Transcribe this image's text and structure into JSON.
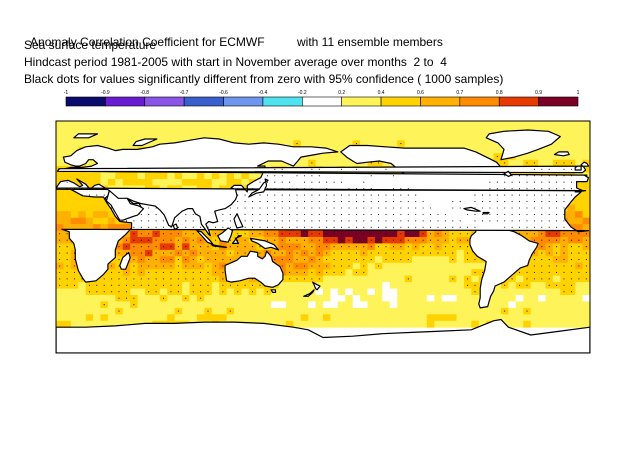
{
  "header": {
    "title_left": "Anomaly Correlation Coefficient for ECMWF",
    "title_right": "with 11 ensemble members",
    "variable": "Sea surface temperature",
    "period": "Hindcast period 1981-2005 with start in November average over months  2 to  4",
    "significance": "Black dots for values significantly different from zero with 95% confidence ( 1000 samples)"
  },
  "colorbar": {
    "tick_labels": [
      "-1",
      "-0.9",
      "-0.8",
      "-0.7",
      "-0.6",
      "-0.4",
      "-0.2",
      "0.2",
      "0.4",
      "0.6",
      "0.7",
      "0.8",
      "0.9",
      "1"
    ],
    "colors": [
      "#0b0b6e",
      "#6a1cd0",
      "#8a55e6",
      "#3a5fcc",
      "#6e96ef",
      "#4fe3f0",
      "#ffffff",
      "#fff35a",
      "#ffd200",
      "#ffb000",
      "#ff8c00",
      "#e73a00",
      "#7a0026"
    ]
  },
  "map": {
    "projection": "equirectangular",
    "lon_range": [
      0,
      360
    ],
    "lat_range": [
      -90,
      90
    ],
    "colors": {
      "land": "#ffffff",
      "coast": "#000000",
      "dots": "#000000"
    }
  }
}
